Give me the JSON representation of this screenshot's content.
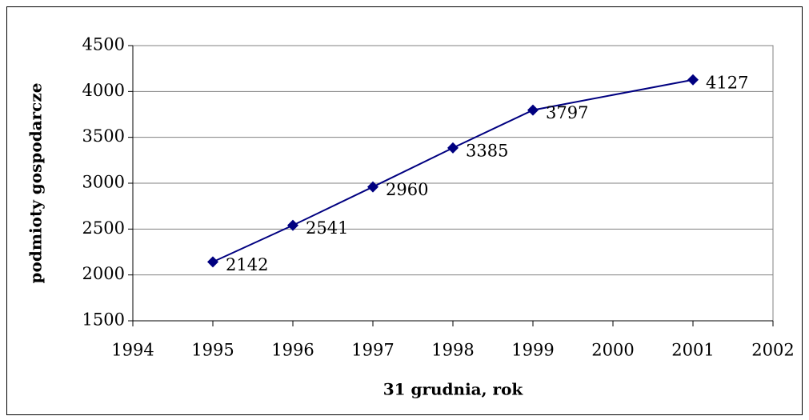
{
  "chart_data": {
    "type": "line",
    "x_label": "31 grudnia, rok",
    "y_label": "podmioty gospodarcze",
    "x": [
      1995,
      1996,
      1997,
      1998,
      1999,
      2001
    ],
    "series": [
      {
        "name": "podmioty gospodarcze",
        "color": "#000080",
        "values": [
          2142,
          2541,
          2960,
          3385,
          3797,
          4127
        ]
      }
    ],
    "xlim": [
      1994,
      2002
    ],
    "xticks": [
      1994,
      1995,
      1996,
      1997,
      1998,
      1999,
      2000,
      2001,
      2002
    ],
    "ylim": [
      1500,
      4500
    ],
    "yticks": [
      1500,
      2000,
      2500,
      3000,
      3500,
      4000,
      4500
    ],
    "grid": true
  }
}
